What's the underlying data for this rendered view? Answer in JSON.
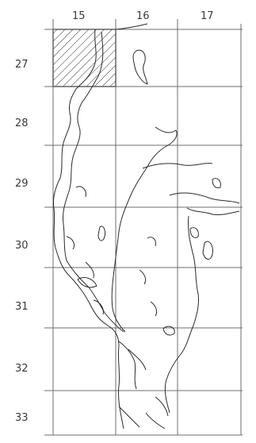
{
  "map": {
    "column_labels": [
      "15",
      "16",
      "17"
    ],
    "row_labels": [
      "27",
      "28",
      "29",
      "30",
      "31",
      "32",
      "33"
    ],
    "highlighted_cell": {
      "column": "15",
      "row": "27",
      "pattern": "diagonal-hatch"
    },
    "colors": {
      "grid": "#6e6e6e",
      "coastline": "#2b2b2b",
      "text": "#3a3a3a",
      "background": "#ffffff"
    }
  }
}
